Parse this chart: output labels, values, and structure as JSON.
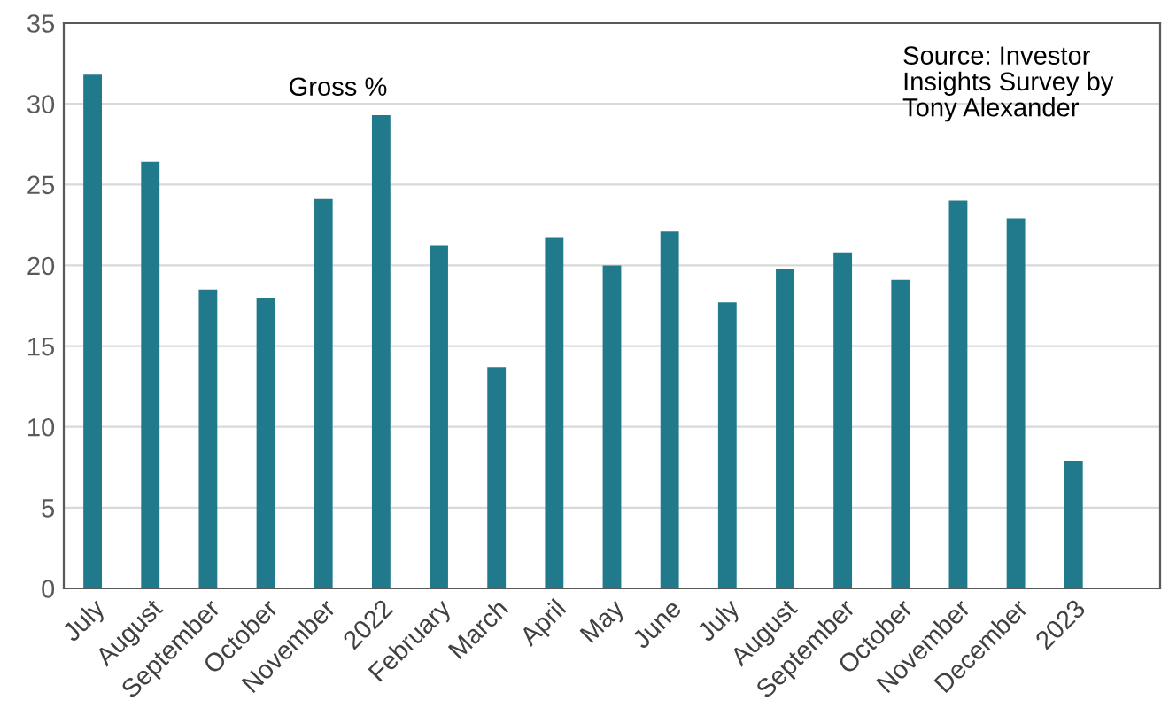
{
  "chart_data": {
    "type": "bar",
    "categories": [
      "July",
      "August",
      "September",
      "October",
      "November",
      "2022",
      "February",
      "March",
      "April",
      "May",
      "June",
      "July",
      "August",
      "September",
      "October",
      "November",
      "December",
      "2023",
      null
    ],
    "series": [
      {
        "color": "#217a8b",
        "values": [
          31.8,
          26.4,
          18.5,
          18.0,
          24.1,
          29.3,
          21.2,
          13.7,
          21.7,
          20.0,
          22.1,
          17.7,
          19.8,
          20.8,
          19.1,
          24.0,
          22.9,
          7.9,
          null
        ]
      }
    ],
    "ylim": [
      0,
      35
    ],
    "yticks": [
      0,
      5,
      10,
      15,
      20,
      25,
      30,
      35
    ],
    "grid": "y",
    "legend": false,
    "annotations": [
      "Gross %",
      "Source: Investor Insights Survey by Tony Alexander"
    ]
  }
}
